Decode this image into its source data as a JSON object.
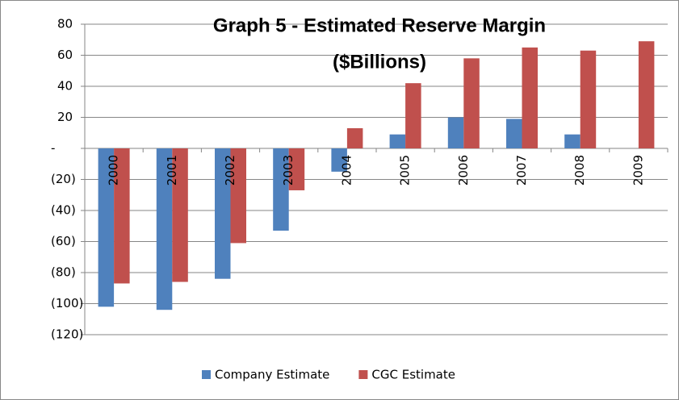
{
  "chart_data": {
    "type": "bar",
    "title": [
      "Graph 5 - Estimated Reserve Margin",
      "($Billions)"
    ],
    "categories": [
      "2000",
      "2001",
      "2002",
      "2003",
      "2004",
      "2005",
      "2006",
      "2007",
      "2008",
      "2009"
    ],
    "series": [
      {
        "name": "Company Estimate",
        "color": "#4f81bd",
        "values": [
          -102,
          -104,
          -84,
          -53,
          -15,
          9,
          20,
          19,
          9,
          null
        ]
      },
      {
        "name": "CGC Estimate",
        "color": "#c0504d",
        "values": [
          -87,
          -86,
          -61,
          -27,
          13,
          42,
          58,
          65,
          63,
          69
        ]
      }
    ],
    "ylim": [
      -120,
      80
    ],
    "yticks": [
      80,
      60,
      40,
      20,
      {
        "value": 0,
        "label": "-"
      },
      {
        "value": -20,
        "label": "(20)"
      },
      {
        "value": -40,
        "label": "(40)"
      },
      {
        "value": -60,
        "label": "(60)"
      },
      {
        "value": -80,
        "label": "(80)"
      },
      {
        "value": -100,
        "label": "(100)"
      },
      {
        "value": -120,
        "label": "(120)"
      }
    ],
    "grid": true,
    "legend": "bottom"
  }
}
